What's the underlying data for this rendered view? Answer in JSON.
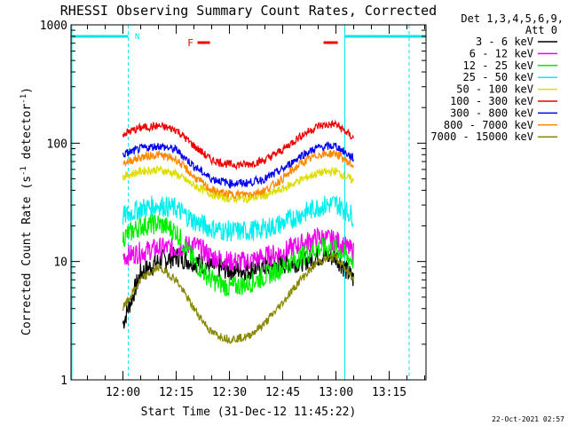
{
  "chart_data": {
    "type": "line",
    "title": "RHESSI Observing Summary Count Rates, Corrected",
    "xlabel": "Start Time (31-Dec-12 11:45:22)",
    "ylabel": "Corrected Count Rate (s-1 detector-1)",
    "ylabel_main": "Corrected Count Rate (s",
    "ylabel_sup1": "-1",
    "ylabel_mid": " detector",
    "ylabel_sup2": "-1",
    "ylabel_end": ")",
    "y_scale": "log",
    "ylim": [
      1,
      1000
    ],
    "xlim": [
      "11:45:22",
      "13:25:22"
    ],
    "x_ticks": [
      "12:00",
      "12:15",
      "12:30",
      "12:45",
      "13:00",
      "13:15"
    ],
    "y_ticks": [
      "1",
      "10",
      "100",
      "1000"
    ],
    "legend_header": [
      "Det 1,3,4,5,6,9,",
      "Att 0"
    ],
    "legend_placement": "right",
    "timestamp": "22-Oct-2021 02:57",
    "annotations": {
      "night_label": "N",
      "flare_label": "F",
      "night_intervals": [
        [
          "11:45:22",
          "12:01:30"
        ],
        [
          "13:02:30",
          "13:25:22"
        ]
      ],
      "flare_intervals": [
        [
          "12:21:00",
          "12:24:30"
        ],
        [
          "12:56:30",
          "13:00:30"
        ]
      ],
      "night_color": "#00e5ee",
      "flare_color": "#ee0000"
    },
    "series": [
      {
        "name": "3 - 6 keV",
        "color": "#000000",
        "x": [
          "12:00",
          "12:05",
          "12:10",
          "12:15",
          "12:20",
          "12:25",
          "12:30",
          "12:35",
          "12:40",
          "12:45",
          "12:50",
          "12:55",
          "13:00",
          "13:05"
        ],
        "values": [
          3,
          8,
          10,
          11,
          10,
          9,
          8.5,
          8.5,
          9,
          9.5,
          10,
          11,
          11,
          7
        ]
      },
      {
        "name": "6 - 12 keV",
        "color": "#ee00ee",
        "x": [
          "12:00",
          "12:05",
          "12:10",
          "12:15",
          "12:20",
          "12:25",
          "12:30",
          "12:35",
          "12:40",
          "12:45",
          "12:50",
          "12:55",
          "13:00",
          "13:05"
        ],
        "values": [
          11,
          12,
          13,
          13,
          14,
          11,
          10,
          10,
          11,
          12,
          14,
          16,
          15,
          12
        ]
      },
      {
        "name": "12 - 25 keV",
        "color": "#00ee00",
        "x": [
          "12:00",
          "12:05",
          "12:10",
          "12:15",
          "12:20",
          "12:25",
          "12:30",
          "12:35",
          "12:40",
          "12:45",
          "12:50",
          "12:55",
          "13:00",
          "13:05"
        ],
        "values": [
          16,
          20,
          21,
          18,
          10,
          7,
          6,
          6.5,
          7.5,
          9,
          11,
          13,
          13,
          10
        ]
      },
      {
        "name": "25 - 50 keV",
        "color": "#00eeee",
        "x": [
          "12:00",
          "12:05",
          "12:10",
          "12:15",
          "12:20",
          "12:25",
          "12:30",
          "12:35",
          "12:40",
          "12:45",
          "12:50",
          "12:55",
          "13:00",
          "13:05"
        ],
        "values": [
          24,
          28,
          30,
          28,
          22,
          19,
          18,
          18,
          19,
          21,
          25,
          29,
          31,
          24
        ]
      },
      {
        "name": "50 - 100 keV",
        "color": "#dddd00",
        "x": [
          "12:00",
          "12:05",
          "12:10",
          "12:15",
          "12:20",
          "12:25",
          "12:30",
          "12:35",
          "12:40",
          "12:45",
          "12:50",
          "12:55",
          "13:00",
          "13:05"
        ],
        "values": [
          52,
          58,
          60,
          55,
          44,
          37,
          34,
          34,
          36,
          41,
          49,
          56,
          58,
          48
        ]
      },
      {
        "name": "100 - 300 keV",
        "color": "#ee0000",
        "x": [
          "12:00",
          "12:05",
          "12:10",
          "12:15",
          "12:20",
          "12:25",
          "12:30",
          "12:35",
          "12:40",
          "12:45",
          "12:50",
          "12:55",
          "13:00",
          "13:05"
        ],
        "values": [
          120,
          135,
          140,
          130,
          95,
          72,
          66,
          66,
          72,
          88,
          115,
          140,
          145,
          110
        ]
      },
      {
        "name": "300 - 800 keV",
        "color": "#0000ee",
        "x": [
          "12:00",
          "12:05",
          "12:10",
          "12:15",
          "12:20",
          "12:25",
          "12:30",
          "12:35",
          "12:40",
          "12:45",
          "12:50",
          "12:55",
          "13:00",
          "13:05"
        ],
        "values": [
          80,
          90,
          95,
          88,
          64,
          50,
          46,
          46,
          50,
          60,
          78,
          92,
          95,
          74
        ]
      },
      {
        "name": "800 - 7000 keV",
        "color": "#ff8800",
        "x": [
          "12:00",
          "12:05",
          "12:10",
          "12:15",
          "12:20",
          "12:25",
          "12:30",
          "12:35",
          "12:40",
          "12:45",
          "12:50",
          "12:55",
          "13:00",
          "13:05"
        ],
        "values": [
          68,
          76,
          80,
          73,
          52,
          40,
          37,
          37,
          40,
          50,
          67,
          80,
          82,
          64
        ]
      },
      {
        "name": "7000 - 15000 keV",
        "color": "#888800",
        "x": [
          "12:00",
          "12:05",
          "12:10",
          "12:15",
          "12:20",
          "12:25",
          "12:30",
          "12:35",
          "12:40",
          "12:45",
          "12:50",
          "12:55",
          "13:00",
          "13:05"
        ],
        "values": [
          4,
          7,
          9,
          7,
          4,
          2.5,
          2.2,
          2.3,
          3,
          4.5,
          7,
          10,
          11,
          7
        ]
      }
    ]
  }
}
